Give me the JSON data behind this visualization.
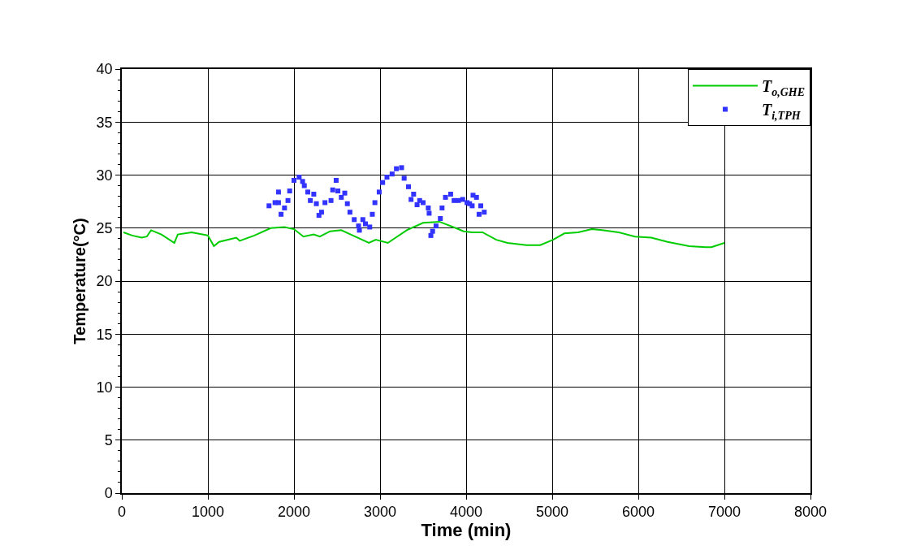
{
  "chart_data": {
    "type": "line",
    "xlabel": "Time (min)",
    "ylabel": "Temperature(°C)",
    "xlim": [
      0,
      8000
    ],
    "xticks": [
      0,
      1000,
      2000,
      3000,
      4000,
      5000,
      6000,
      7000,
      8000
    ],
    "ylim": [
      0,
      40
    ],
    "yticks": [
      0,
      5,
      10,
      15,
      20,
      25,
      30,
      35,
      40
    ],
    "grid": true,
    "legend": "top right",
    "series": [
      {
        "name": "T$_{o,GHE}$",
        "color": "#00cc00",
        "line_style": "solid",
        "marker": "none",
        "x": [
          20,
          120,
          230,
          290,
          340,
          460,
          610,
          650,
          810,
          1000,
          1070,
          1130,
          1330,
          1370,
          1540,
          1730,
          1890,
          2000,
          2110,
          2230,
          2300,
          2420,
          2550,
          2710,
          2870,
          2950,
          3090,
          3310,
          3500,
          3690,
          3880,
          3970,
          4070,
          4190,
          4350,
          4480,
          4700,
          4860,
          5010,
          5140,
          5300,
          5460,
          5580,
          5770,
          5960,
          6150,
          6340,
          6590,
          6780,
          6850,
          7000
        ],
        "values": [
          24.6,
          24.3,
          24.1,
          24.2,
          24.8,
          24.4,
          23.6,
          24.4,
          24.6,
          24.3,
          23.3,
          23.7,
          24.1,
          23.8,
          24.3,
          25.0,
          25.1,
          24.9,
          24.2,
          24.4,
          24.2,
          24.7,
          24.8,
          24.2,
          23.6,
          23.9,
          23.6,
          24.8,
          25.5,
          25.6,
          25.0,
          24.7,
          24.6,
          24.6,
          23.9,
          23.6,
          23.4,
          23.4,
          23.9,
          24.5,
          24.6,
          24.9,
          24.8,
          24.6,
          24.2,
          24.1,
          23.7,
          23.3,
          23.2,
          23.2,
          23.6
        ]
      },
      {
        "name": "T$_{i,TPH}$",
        "type": "scatter",
        "color": "#3333ff",
        "marker": "square",
        "x": [
          1710,
          1780,
          1820,
          1820,
          1850,
          1890,
          1930,
          1950,
          2000,
          2060,
          2100,
          2120,
          2160,
          2190,
          2230,
          2260,
          2290,
          2320,
          2360,
          2430,
          2450,
          2490,
          2510,
          2550,
          2590,
          2620,
          2650,
          2700,
          2750,
          2760,
          2800,
          2830,
          2880,
          2910,
          2940,
          2990,
          3030,
          3080,
          3140,
          3190,
          3250,
          3280,
          3330,
          3390,
          3360,
          3430,
          3460,
          3500,
          3560,
          3570,
          3610,
          3590,
          3650,
          3700,
          3720,
          3760,
          3820,
          3860,
          3910,
          3960,
          4010,
          4040,
          4070,
          4080,
          4120,
          4150,
          4170,
          4210
        ],
        "values": [
          27.1,
          27.4,
          27.4,
          28.4,
          26.3,
          26.9,
          27.6,
          28.5,
          29.5,
          29.8,
          29.4,
          29.0,
          28.4,
          27.6,
          28.2,
          27.3,
          26.2,
          26.5,
          27.4,
          27.6,
          28.6,
          29.5,
          28.5,
          27.9,
          28.3,
          27.3,
          26.5,
          25.8,
          25.2,
          24.8,
          25.8,
          25.4,
          25.1,
          26.3,
          27.4,
          28.4,
          29.3,
          29.8,
          30.1,
          30.6,
          30.7,
          29.7,
          28.9,
          28.2,
          27.7,
          27.2,
          27.6,
          27.4,
          26.9,
          26.4,
          24.7,
          24.3,
          25.2,
          25.9,
          26.9,
          27.9,
          28.2,
          27.6,
          27.6,
          27.7,
          27.4,
          27.3,
          27.1,
          28.1,
          27.9,
          26.3,
          27.1,
          26.5
        ]
      }
    ]
  }
}
